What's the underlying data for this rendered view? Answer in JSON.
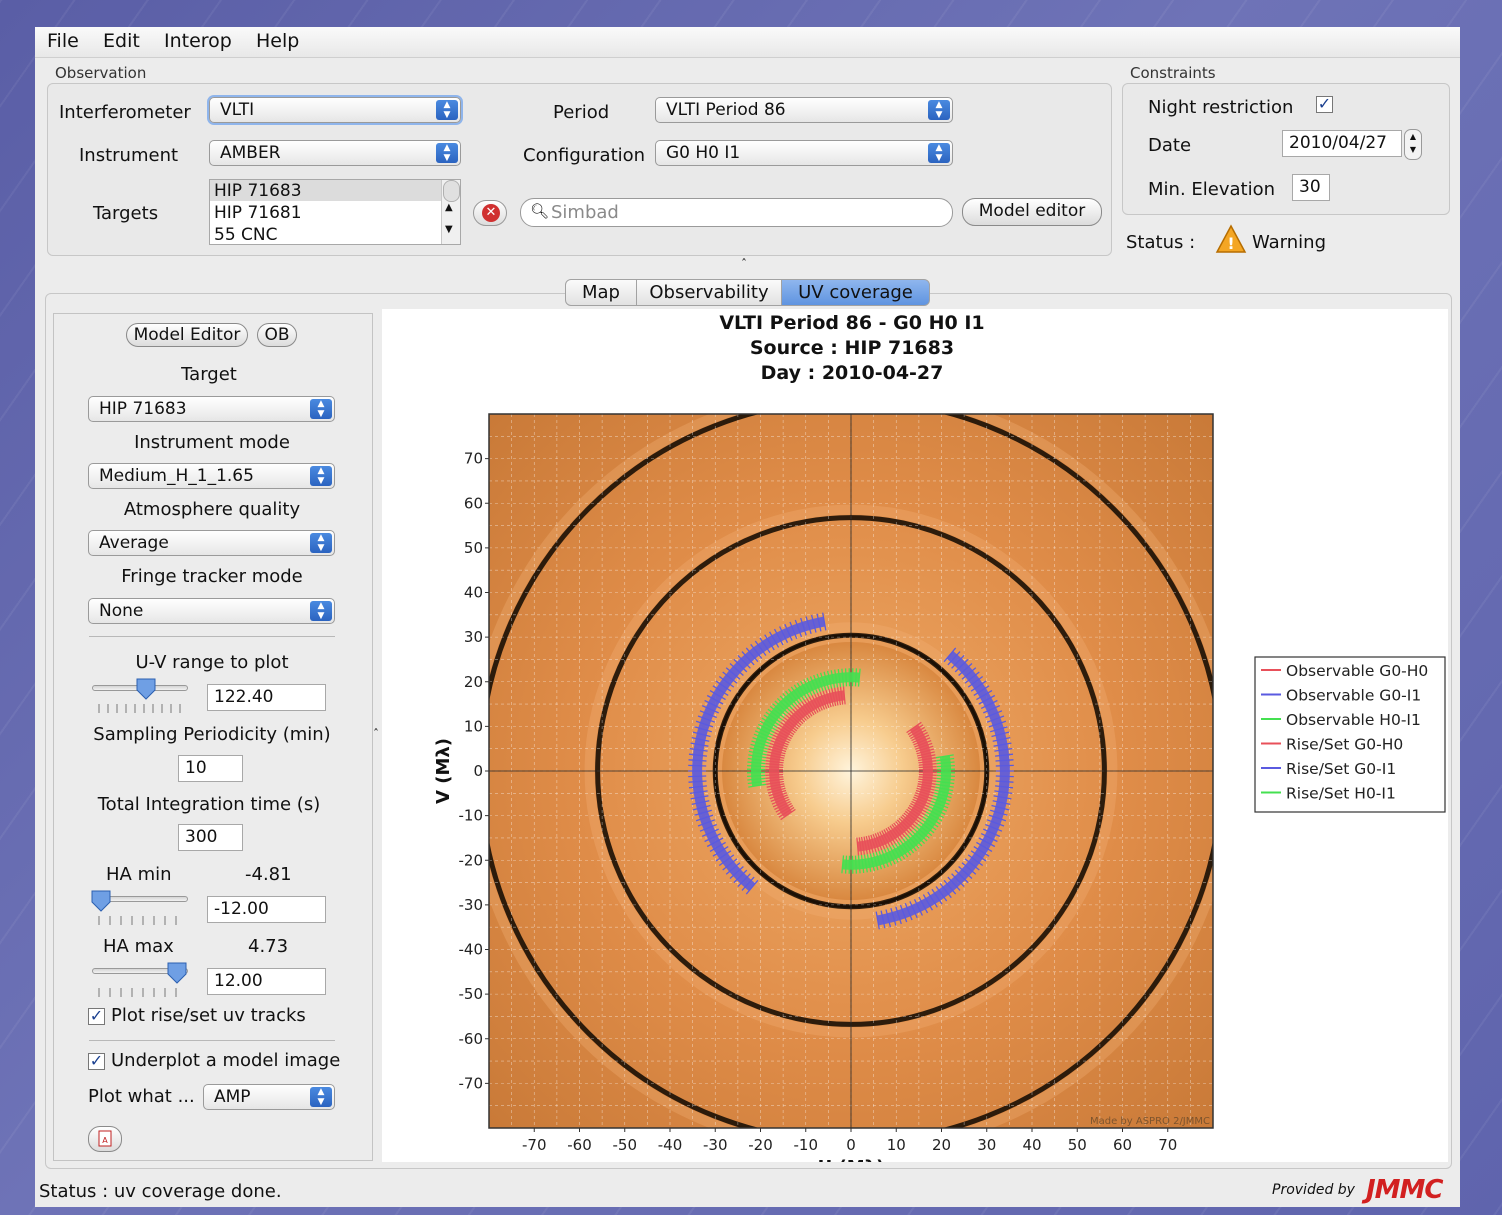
{
  "menu": {
    "items": [
      "File",
      "Edit",
      "Interop",
      "Help"
    ]
  },
  "observation": {
    "title": "Observation",
    "interferometer_label": "Interferometer",
    "interferometer_value": "VLTI",
    "instrument_label": "Instrument",
    "instrument_value": "AMBER",
    "period_label": "Period",
    "period_value": "VLTI Period 86",
    "configuration_label": "Configuration",
    "configuration_value": "G0 H0 I1",
    "targets_label": "Targets",
    "targets": [
      "HIP 71683",
      "HIP 71681",
      "55 CNC"
    ],
    "search_placeholder": "Simbad",
    "model_editor_label": "Model editor"
  },
  "constraints": {
    "title": "Constraints",
    "night_label": "Night restriction",
    "night_checked": true,
    "date_label": "Date",
    "date_value": "2010/04/27",
    "min_elev_label": "Min. Elevation",
    "min_elev_value": "30",
    "status_label": "Status :",
    "status_value": "Warning"
  },
  "tabs": [
    "Map",
    "Observability",
    "UV coverage"
  ],
  "active_tab": "UV coverage",
  "panel": {
    "model_editor_btn": "Model Editor",
    "ob_btn": "OB",
    "target_label": "Target",
    "target_value": "HIP 71683",
    "instrument_mode_label": "Instrument mode",
    "instrument_mode_value": "Medium_H_1_1.65",
    "atmosphere_label": "Atmosphere quality",
    "atmosphere_value": "Average",
    "fringe_label": "Fringe tracker mode",
    "fringe_value": "None",
    "uv_range_label": "U-V range to plot",
    "uv_range_value": "122.40",
    "sampling_label": "Sampling Periodicity (min)",
    "sampling_value": "10",
    "integration_label": "Total Integration time (s)",
    "integration_value": "300",
    "ha_min_label": "HA min",
    "ha_min_display": "-4.81",
    "ha_min_value": "-12.00",
    "ha_max_label": "HA max",
    "ha_max_display": "4.73",
    "ha_max_value": "12.00",
    "plot_rise_label": "Plot rise/set uv tracks",
    "underplot_label": "Underplot a model image",
    "plot_what_label": "Plot what ...",
    "plot_what_value": "AMP"
  },
  "status": {
    "text": "Status :  uv coverage done.",
    "provided_by": "Provided by",
    "brand": "JMMC"
  },
  "chart_data": {
    "type": "scatter",
    "title_lines": [
      "VLTI Period 86 - G0 H0 I1",
      "Source : HIP 71683",
      "Day : 2010-04-27"
    ],
    "xlabel": "U (Mλ)",
    "ylabel": "V (Mλ)",
    "xlim": [
      -80,
      80
    ],
    "ylim": [
      -80,
      80
    ],
    "xticks": [
      -70,
      -60,
      -50,
      -40,
      -30,
      -20,
      -10,
      0,
      10,
      20,
      30,
      40,
      50,
      60,
      70
    ],
    "yticks": [
      70,
      60,
      50,
      40,
      30,
      20,
      10,
      0,
      -10,
      -20,
      -30,
      -40,
      -50,
      -60,
      -70
    ],
    "grid": true,
    "background_model": "uniform disk amplitude (orange rings)",
    "watermark": "Made by ASPRO 2/JMMC",
    "legend_position": "right",
    "series": [
      {
        "name": "Observable G0-H0",
        "color": "#e8505a",
        "kind": "observable",
        "radius": 17,
        "arcs": [
          [
            95,
            215
          ],
          [
            -85,
            35
          ]
        ]
      },
      {
        "name": "Observable G0-I1",
        "color": "#5a5ae0",
        "kind": "observable",
        "radius": 34,
        "arcs": [
          [
            100,
            230
          ],
          [
            -80,
            50
          ]
        ]
      },
      {
        "name": "Observable H0-I1",
        "color": "#44e050",
        "kind": "observable",
        "radius": 21,
        "arcs": [
          [
            85,
            190
          ],
          [
            -95,
            10
          ]
        ]
      },
      {
        "name": "Rise/Set G0-H0",
        "color": "#e8505a",
        "kind": "riseset",
        "radius": 17,
        "arcs": [
          [
            95,
            215
          ],
          [
            -85,
            35
          ]
        ]
      },
      {
        "name": "Rise/Set G0-I1",
        "color": "#5a5ae0",
        "kind": "riseset",
        "radius": 34,
        "arcs": [
          [
            100,
            230
          ],
          [
            -80,
            50
          ]
        ]
      },
      {
        "name": "Rise/Set H0-I1",
        "color": "#44e050",
        "kind": "riseset",
        "radius": 21,
        "arcs": [
          [
            85,
            190
          ],
          [
            -95,
            10
          ]
        ]
      }
    ]
  },
  "colors": {
    "tab_active": "#6f9fe4",
    "combo_arrow": "#2f6ac7",
    "warning": "#f0a020",
    "brand_red": "#d22020"
  }
}
